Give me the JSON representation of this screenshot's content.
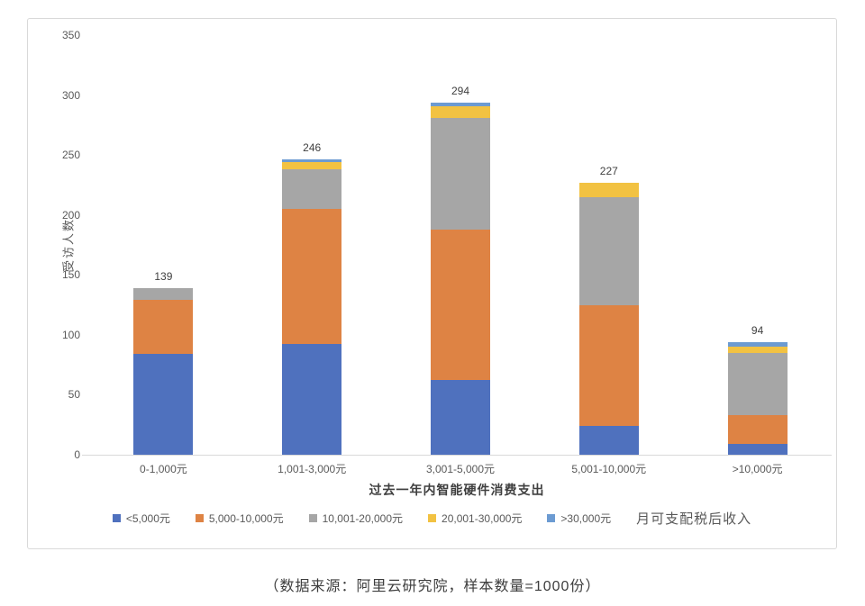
{
  "caption": "（数据来源：阿里云研究院，样本数量=1000份）",
  "chart_data": {
    "type": "bar",
    "subtype": "stacked",
    "title": "",
    "xlabel": "过去一年内智能硬件消费支出",
    "ylabel": "受访人数",
    "ylim": [
      0,
      350
    ],
    "yticks": [
      0,
      50,
      100,
      150,
      200,
      250,
      300,
      350
    ],
    "grid": false,
    "legend_position": "bottom",
    "legend_note": "月可支配税后收入",
    "categories": [
      "0-1,000元",
      "1,001-3,000元",
      "3,001-5,000元",
      "5,001-10,000元",
      ">10,000元"
    ],
    "totals": [
      139,
      246,
      294,
      227,
      94
    ],
    "series": [
      {
        "name": "<5,000元",
        "color": "#4F71BE",
        "values": [
          84,
          92,
          62,
          24,
          9
        ]
      },
      {
        "name": "5,000-10,000元",
        "color": "#DE8344",
        "values": [
          45,
          113,
          126,
          101,
          24
        ]
      },
      {
        "name": "10,001-20,000元",
        "color": "#A6A6A6",
        "values": [
          10,
          33,
          93,
          90,
          52
        ]
      },
      {
        "name": "20,001-30,000元",
        "color": "#F2C242",
        "values": [
          0,
          6,
          10,
          12,
          5
        ]
      },
      {
        "name": ">30,000元",
        "color": "#6C9BD2",
        "values": [
          0,
          2,
          3,
          0,
          4
        ]
      }
    ]
  }
}
